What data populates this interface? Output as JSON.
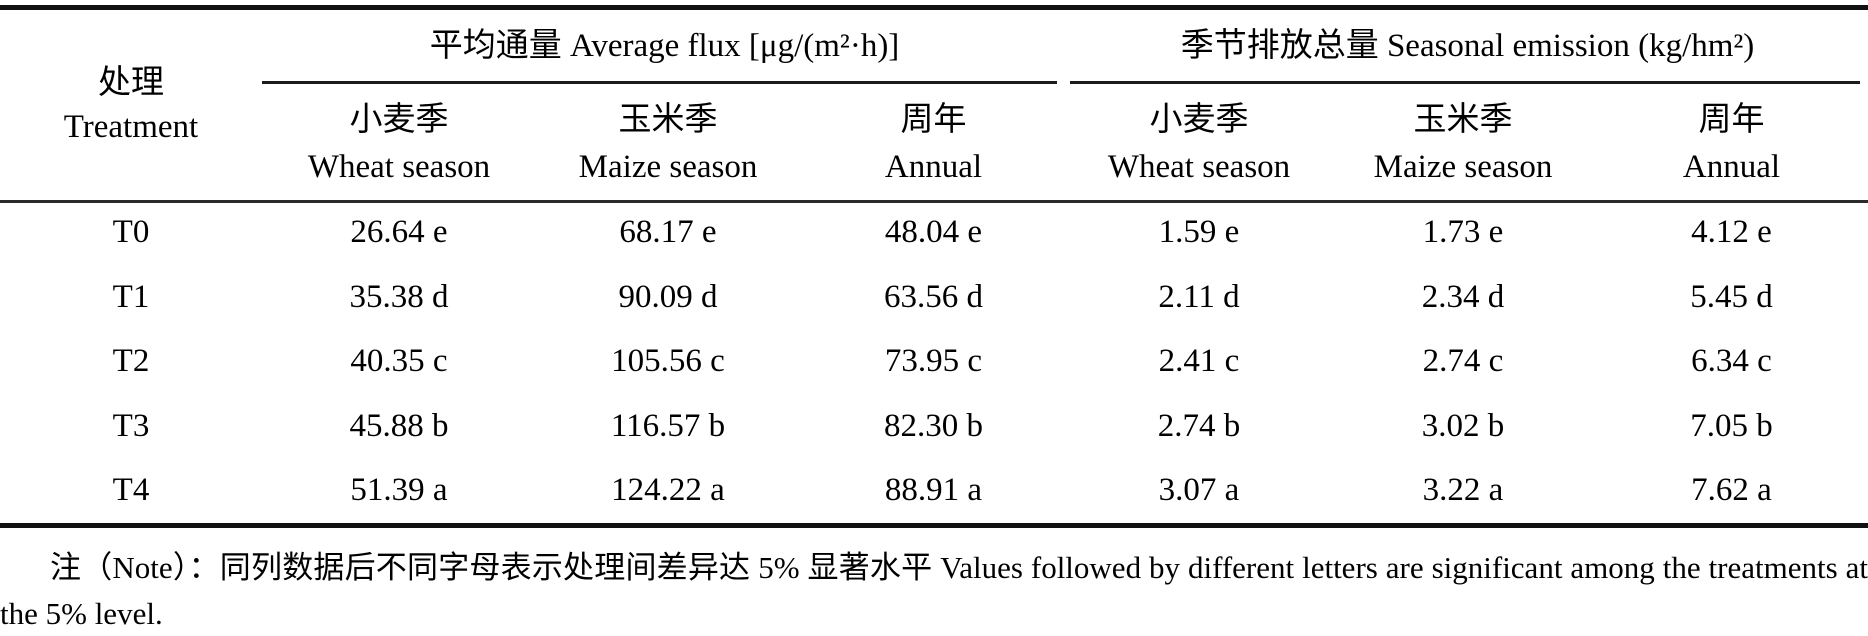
{
  "table": {
    "treatment_header": {
      "zh": "处理",
      "en": "Treatment"
    },
    "groups": [
      {
        "title": "平均通量 Average flux [μg/(m²·h)]"
      },
      {
        "title": "季节排放总量 Seasonal emission (kg/hm²)"
      }
    ],
    "subheaders": [
      {
        "zh": "小麦季",
        "en": "Wheat season"
      },
      {
        "zh": "玉米季",
        "en": "Maize season"
      },
      {
        "zh": "周年",
        "en": "Annual"
      },
      {
        "zh": "小麦季",
        "en": "Wheat season"
      },
      {
        "zh": "玉米季",
        "en": "Maize season"
      },
      {
        "zh": "周年",
        "en": "Annual"
      }
    ],
    "rows": [
      {
        "treatment": "T0",
        "values": [
          "26.64 e",
          "68.17 e",
          "48.04 e",
          "1.59 e",
          "1.73 e",
          "4.12 e"
        ]
      },
      {
        "treatment": "T1",
        "values": [
          "35.38 d",
          "90.09 d",
          "63.56 d",
          "2.11 d",
          "2.34 d",
          "5.45 d"
        ]
      },
      {
        "treatment": "T2",
        "values": [
          "40.35 c",
          "105.56 c",
          "73.95 c",
          "2.41 c",
          "2.74 c",
          "6.34 c"
        ]
      },
      {
        "treatment": "T3",
        "values": [
          "45.88 b",
          "116.57 b",
          "82.30 b",
          "2.74 b",
          "3.02 b",
          "7.05 b"
        ]
      },
      {
        "treatment": "T4",
        "values": [
          "51.39 a",
          "124.22 a",
          "88.91 a",
          "3.07 a",
          "3.22 a",
          "7.62 a"
        ]
      }
    ]
  },
  "note": "注（Note）：同列数据后不同字母表示处理间差异达 5% 显著水平 Values followed by different letters are significant among the treatments at the 5% level."
}
